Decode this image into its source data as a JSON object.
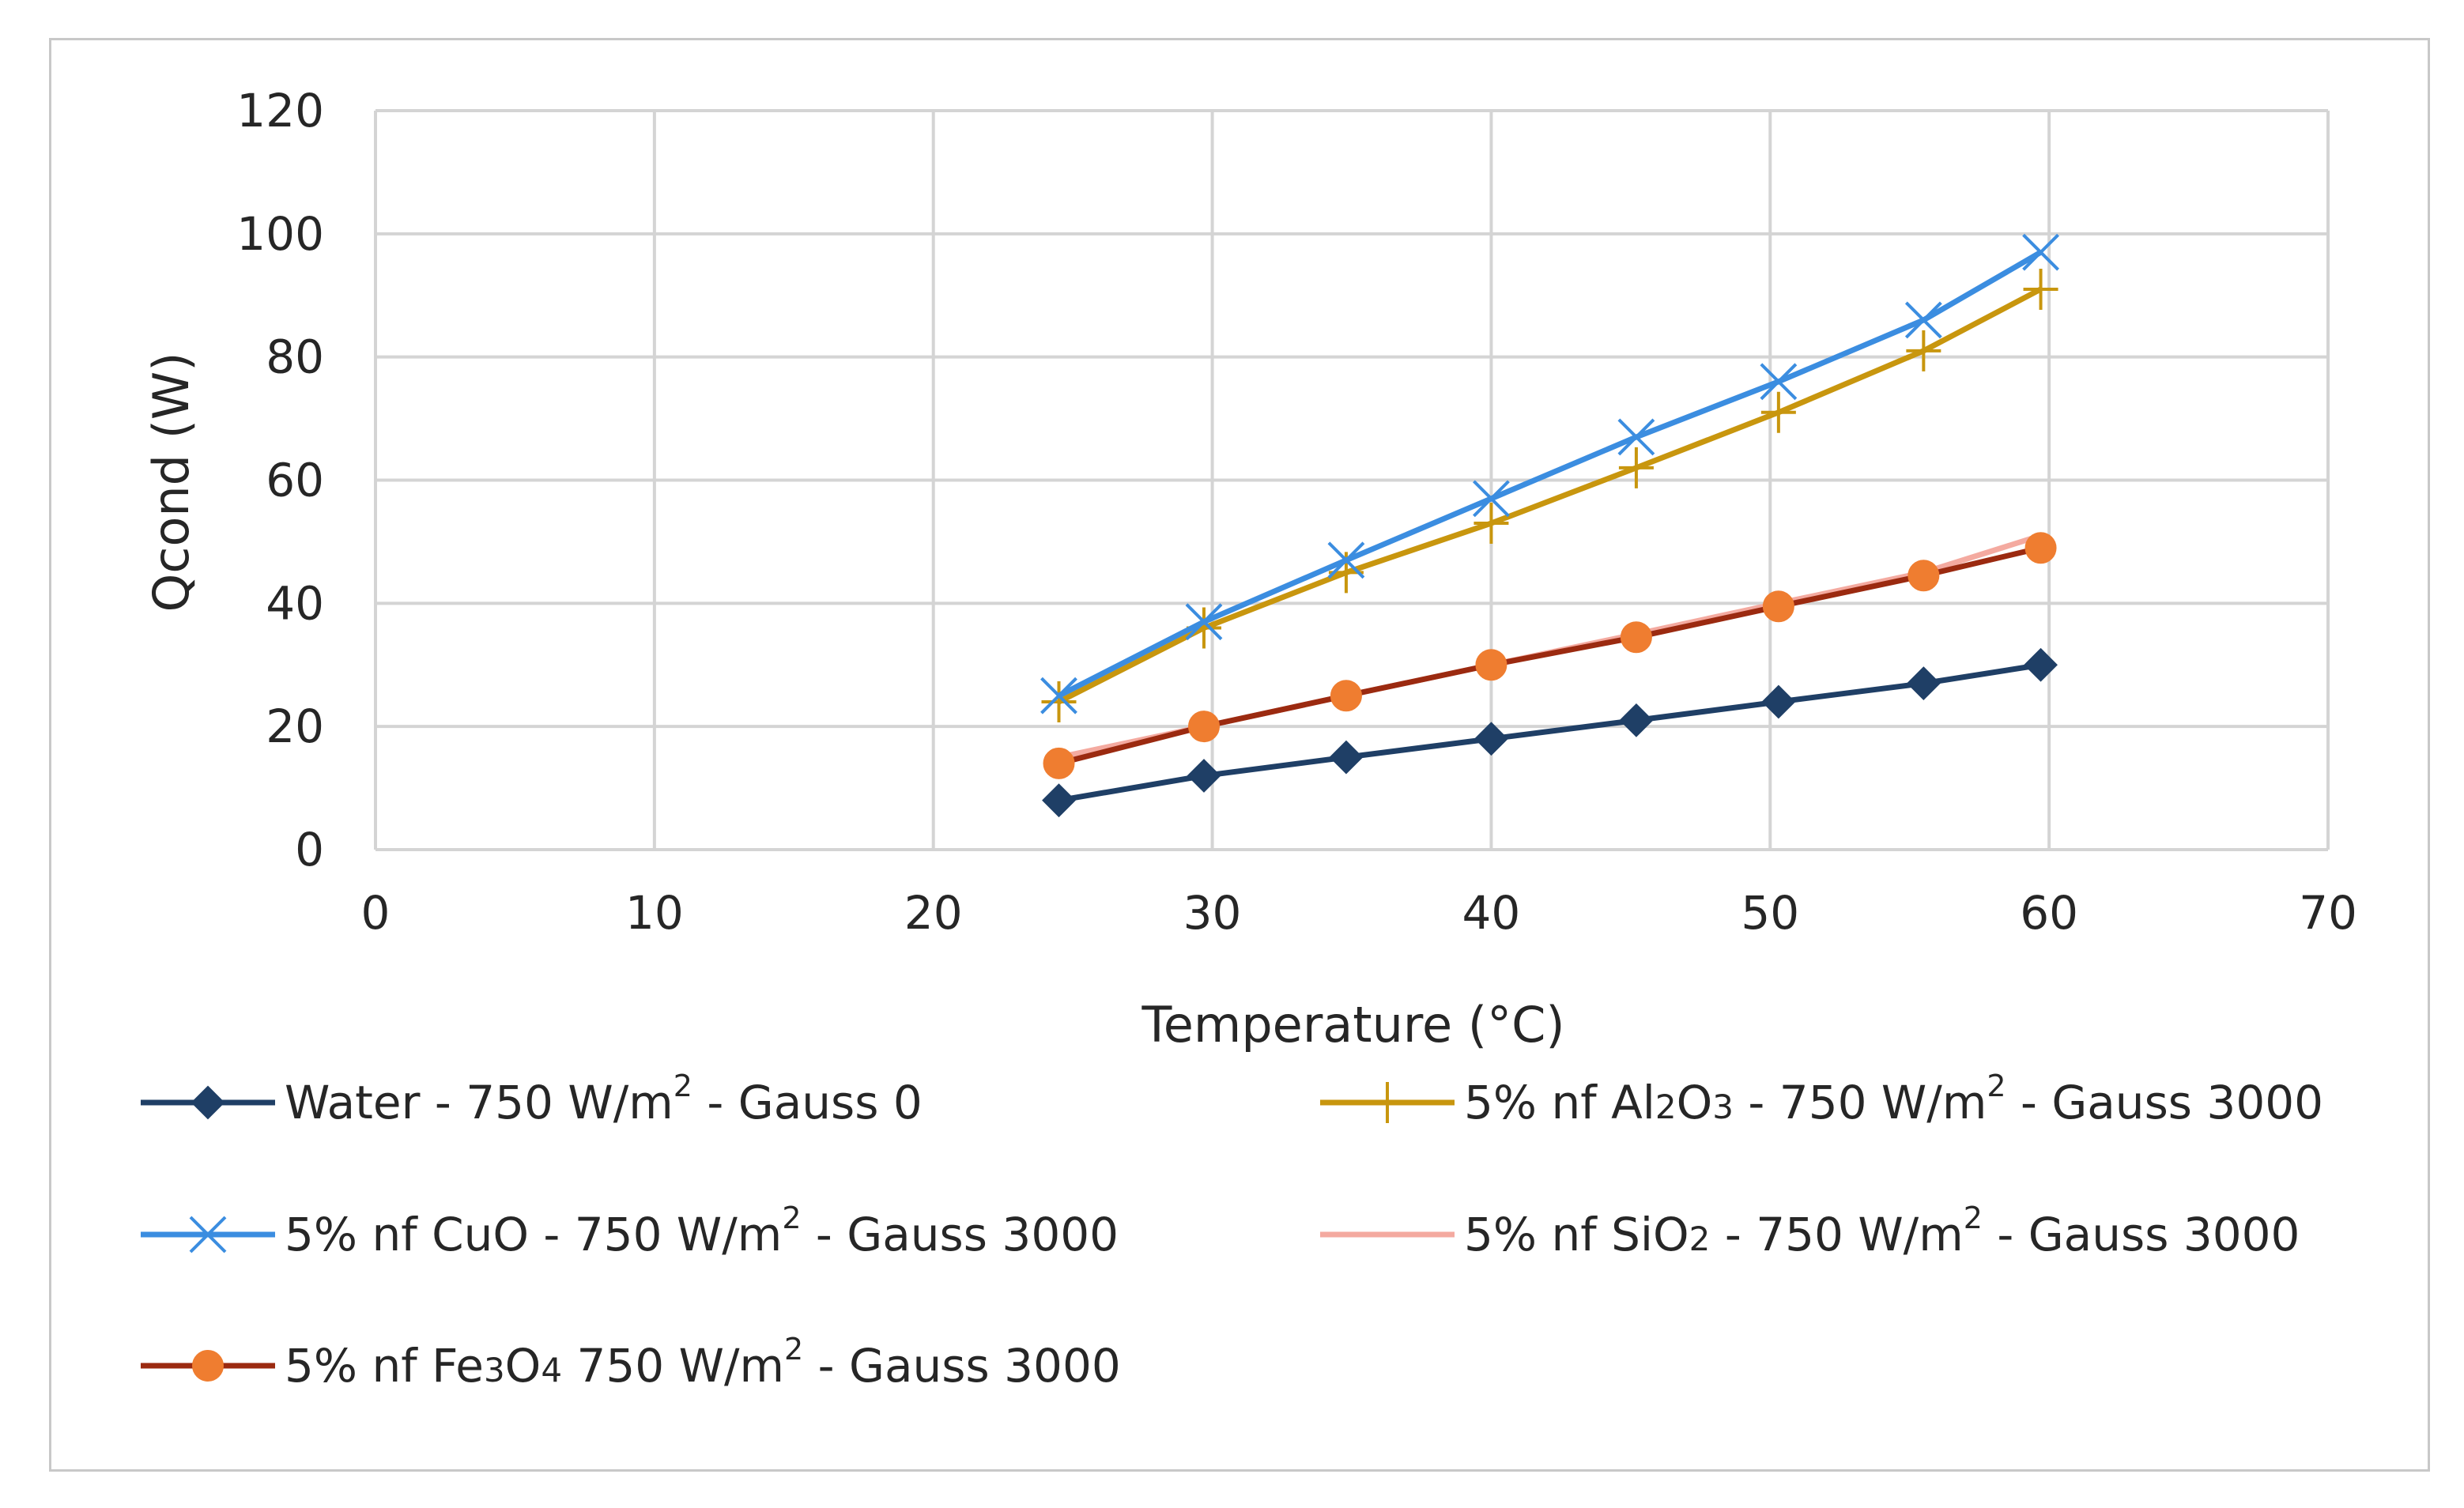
{
  "chart_data": {
    "type": "line",
    "title": "",
    "xlabel": "Temperature (°C)",
    "ylabel": "Qcond (W)",
    "xlim": [
      0,
      70
    ],
    "ylim": [
      0,
      120
    ],
    "xticks": [
      "0",
      "10",
      "20",
      "30",
      "40",
      "50",
      "60",
      "70"
    ],
    "yticks": [
      "0",
      "20",
      "40",
      "60",
      "80",
      "100",
      "120"
    ],
    "grid": true,
    "legend_position": "bottom",
    "series": [
      {
        "name": "Water - 750 W/m2 - Gauss 0",
        "legend": {
          "pre": "Water - 750 W/m",
          "sup": "2",
          "post": "  - Gauss 0"
        },
        "color": "#1f3f66",
        "marker": "diamond",
        "x": [
          24.5,
          29.7,
          34.8,
          40,
          45.2,
          50.3,
          55.5,
          59.7
        ],
        "y": [
          8,
          12,
          15,
          18,
          21,
          24,
          27,
          30
        ]
      },
      {
        "name": "5% nf Al2O3 - 750 W/m2 - Gauss 3000",
        "legend": {
          "pre": "5% nf Al",
          "sub1": "2",
          "mid": "O",
          "sub2": "3",
          "post": "  - 750 W/m",
          "sup": "2",
          "post2": "  - Gauss 3000"
        },
        "color": "#c8960e",
        "marker": "plus",
        "x": [
          24.5,
          29.7,
          34.8,
          40,
          45.2,
          50.3,
          55.5,
          59.7
        ],
        "y": [
          24,
          36,
          45,
          53,
          62,
          71,
          81,
          91
        ]
      },
      {
        "name": "5% nf CuO - 750 W/m2 - Gauss 3000",
        "legend": {
          "pre": "5% nf CuO - 750 W/m",
          "sup": "2",
          "post": "  - Gauss 3000"
        },
        "color": "#3b8de0",
        "marker": "x",
        "x": [
          24.5,
          29.7,
          34.8,
          40,
          45.2,
          50.3,
          55.5,
          59.7
        ],
        "y": [
          25,
          37,
          47,
          57,
          67,
          76,
          86,
          97
        ]
      },
      {
        "name": "5% nf SiO2 - 750 W/m2 - Gauss 3000",
        "legend": {
          "pre": "5% nf   Si",
          "mid": "O",
          "sub1": "2",
          "post": "   - 750 W/m",
          "sup": "2",
          "post2": "  - Gauss 3000"
        },
        "color": "#f4aaa0",
        "marker": "none",
        "x": [
          24.5,
          29.7,
          34.8,
          40,
          45.2,
          50.3,
          55.5,
          59.7
        ],
        "y": [
          15,
          20,
          25,
          30,
          35,
          40,
          45,
          51
        ]
      },
      {
        "name": "5% nf Fe3O4 750 W/m2 - Gauss 3000",
        "legend": {
          "pre": "5% nf Fe",
          "sub1": "3",
          "mid": "O",
          "sub2": "4",
          "post": " 750 W/m",
          "sup": "2",
          "post2": "  - Gauss 3000"
        },
        "color": "#9b2a10",
        "marker_color": "#ef7d30",
        "marker": "circle",
        "x": [
          24.5,
          29.7,
          34.8,
          40,
          45.2,
          50.3,
          55.5,
          59.7
        ],
        "y": [
          14,
          20,
          25,
          30,
          34.5,
          39.5,
          44.5,
          49
        ]
      }
    ]
  }
}
